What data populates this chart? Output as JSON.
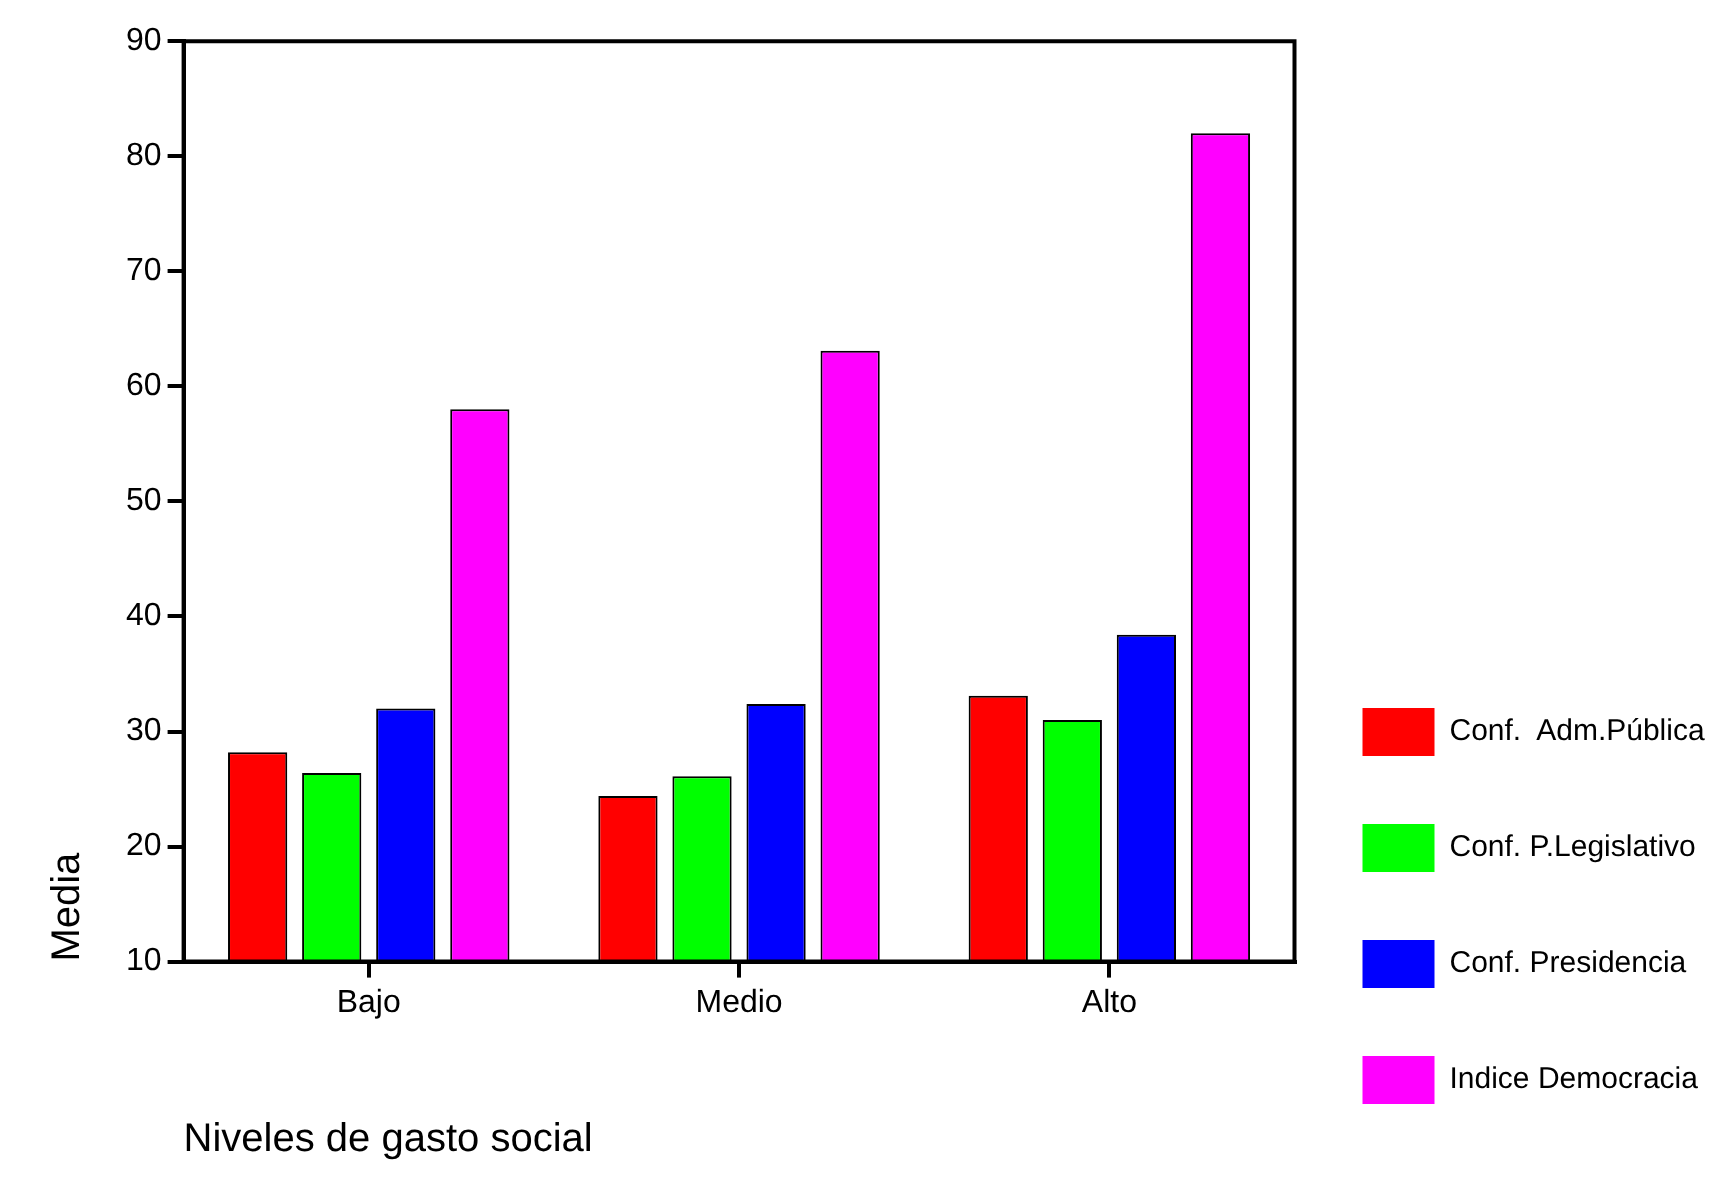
{
  "chart_data": {
    "type": "bar",
    "xlabel": "Niveles de gasto social",
    "ylabel": "Media",
    "categories": [
      "Bajo",
      "Medio",
      "Alto"
    ],
    "series": [
      {
        "name": "Conf.  Adm.Pública",
        "color": "#ff0000",
        "values": [
          28.2,
          24.4,
          33.1
        ]
      },
      {
        "name": "Conf. P.Legislativo",
        "color": "#00ff00",
        "values": [
          26.4,
          26.1,
          31.0
        ]
      },
      {
        "name": "Conf. Presidencia",
        "color": "#0000ff",
        "values": [
          32.0,
          32.4,
          38.4
        ]
      },
      {
        "name": "Indice Democracia",
        "color": "#ff00ff",
        "values": [
          58.0,
          63.1,
          82.0
        ]
      }
    ],
    "ylim": [
      10,
      90
    ],
    "yticks": [
      10,
      20,
      30,
      40,
      50,
      60,
      70,
      80,
      90
    ],
    "grid": false,
    "legend": "right"
  }
}
